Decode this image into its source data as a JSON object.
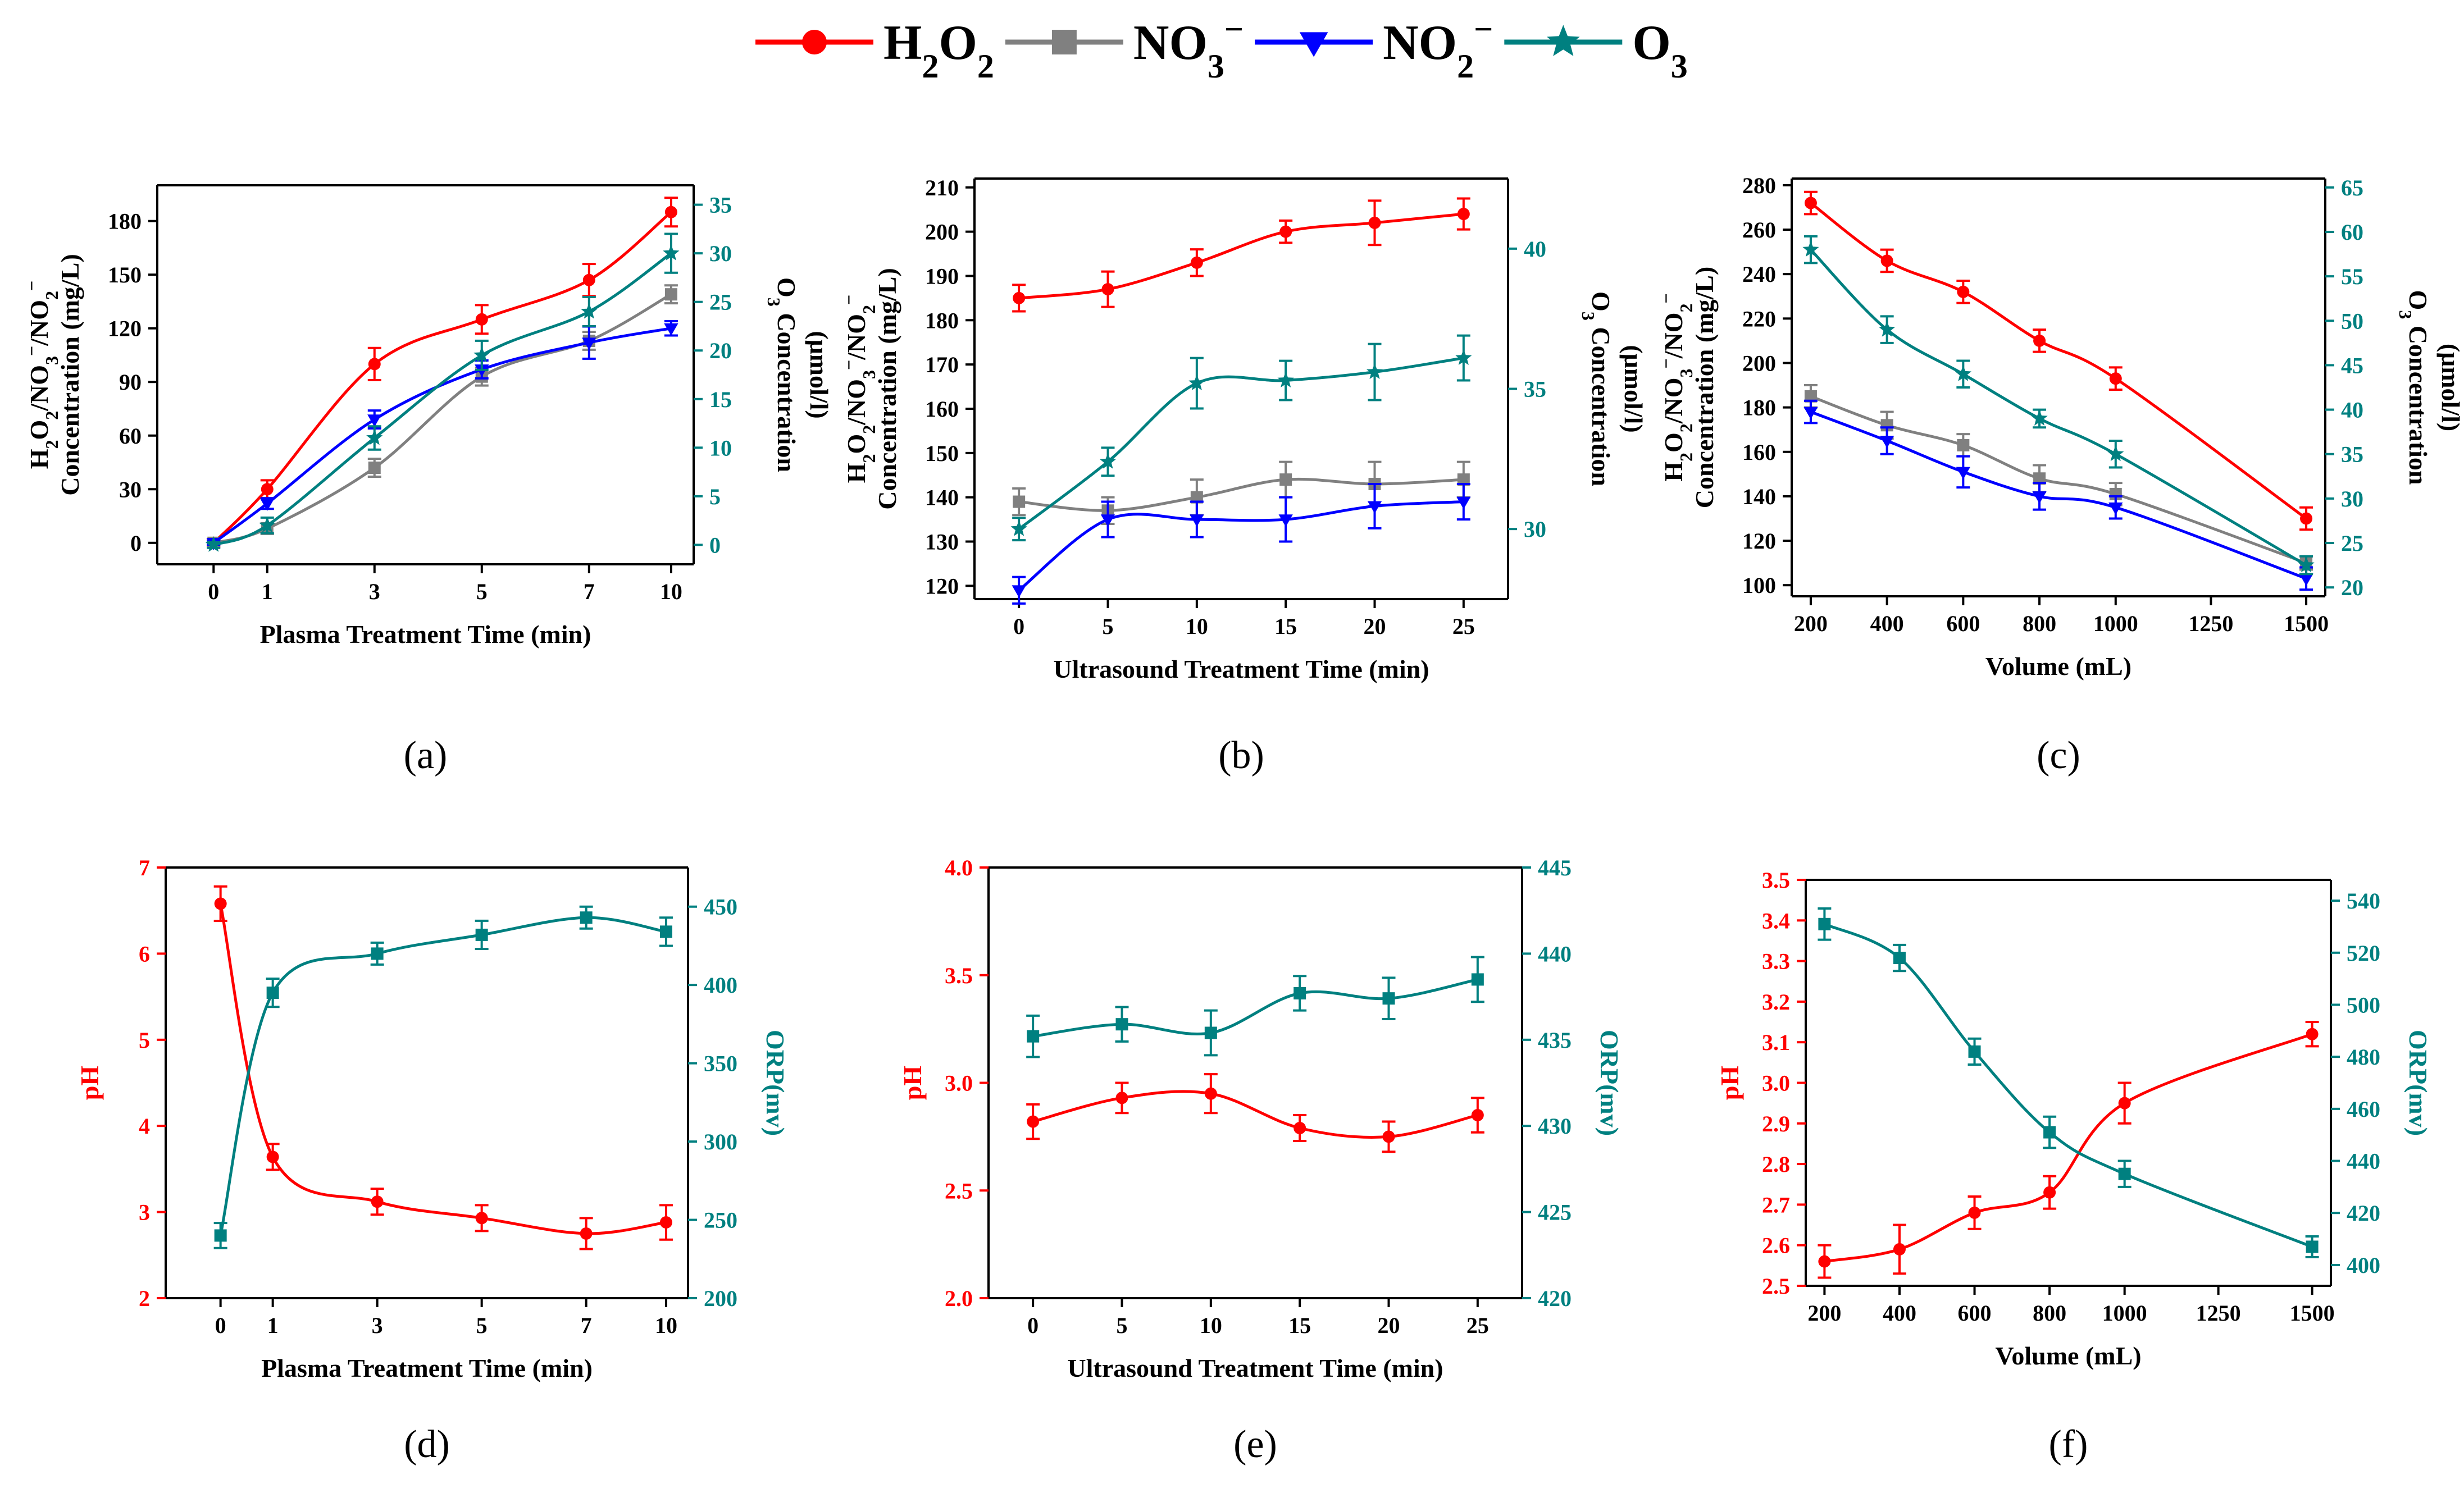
{
  "colors": {
    "H2O2": "#ff0000",
    "NO3": "#808080",
    "NO2": "#0000ff",
    "O3": "#008080",
    "pH": "#ff0000",
    "ORP": "#008080"
  },
  "legend": [
    {
      "key": "H2O2",
      "main": "H",
      "sub1": "2",
      "mid": "O",
      "sub2": "2",
      "sup": "",
      "marker": "circle"
    },
    {
      "key": "NO3",
      "main": "NO",
      "sub1": "3",
      "mid": "",
      "sub2": "",
      "sup": "−",
      "marker": "square"
    },
    {
      "key": "NO2",
      "main": "NO",
      "sub1": "2",
      "mid": "",
      "sub2": "",
      "sup": "−",
      "marker": "triangle-down"
    },
    {
      "key": "O3",
      "main": "O",
      "sub1": "3",
      "mid": "",
      "sub2": "",
      "sup": "",
      "marker": "star"
    }
  ],
  "chart_data": [
    {
      "panel": "(a)",
      "type": "line",
      "x_mode": "categorical",
      "x": [
        0,
        1,
        3,
        5,
        7,
        10
      ],
      "xlabel": "Plasma Treatment Time (min)",
      "ylabel_left_line1": "H2O2/NO3−/NO2−",
      "ylabel_left_line2": "Concentration (mg/L)",
      "ylabel_right_line1": "O3 Concentration",
      "ylabel_right_line2": "(μmol/l)",
      "ylim_left": [
        -12,
        200
      ],
      "yticks_left": [
        0,
        30,
        60,
        90,
        120,
        150,
        180
      ],
      "ylim_right": [
        -2,
        37
      ],
      "yticks_right": [
        0,
        5,
        10,
        15,
        20,
        25,
        30,
        35
      ],
      "series": [
        {
          "name": "H2O2",
          "axis": "left",
          "values": [
            0,
            30,
            100,
            125,
            147,
            185
          ],
          "errors": [
            2,
            5,
            9,
            8,
            9,
            8
          ]
        },
        {
          "name": "NO3−",
          "axis": "left",
          "values": [
            0,
            8,
            42,
            93,
            113,
            139
          ],
          "errors": [
            1,
            3,
            5,
            5,
            5,
            5
          ]
        },
        {
          "name": "NO2−",
          "axis": "left",
          "values": [
            0,
            22,
            69,
            97,
            112,
            120
          ],
          "errors": [
            1,
            3,
            5,
            5,
            9,
            4
          ]
        },
        {
          "name": "O3",
          "axis": "right",
          "values": [
            0,
            2,
            11,
            19.5,
            24,
            30
          ],
          "errors": [
            0.3,
            0.8,
            1.2,
            1.5,
            1.5,
            2
          ]
        }
      ]
    },
    {
      "panel": "(b)",
      "type": "line",
      "x_mode": "numeric",
      "x": [
        0,
        5,
        10,
        15,
        20,
        25
      ],
      "xlim": [
        -2.5,
        27.5
      ],
      "xticks": [
        0,
        5,
        10,
        15,
        20,
        25
      ],
      "xlabel": "Ultrasound Treatment Time (min)",
      "ylabel_left_line1": "H2O2/NO3−/NO2−",
      "ylabel_left_line2": "Concentration (mg/L)",
      "ylabel_right_line1": "O3 Concentration",
      "ylabel_right_line2": "(μmol/l)",
      "ylim_left": [
        117,
        212
      ],
      "yticks_left": [
        120,
        130,
        140,
        150,
        160,
        170,
        180,
        190,
        200,
        210
      ],
      "ylim_right": [
        27.5,
        42.5
      ],
      "yticks_right": [
        30,
        35,
        40
      ],
      "series": [
        {
          "name": "H2O2",
          "axis": "left",
          "values": [
            185,
            187,
            193,
            200,
            202,
            204
          ],
          "errors": [
            3,
            4,
            3,
            2.5,
            5,
            3.5
          ]
        },
        {
          "name": "NO3−",
          "axis": "left",
          "values": [
            139,
            137,
            140,
            144,
            143,
            144
          ],
          "errors": [
            3,
            3,
            4,
            4,
            5,
            4
          ]
        },
        {
          "name": "NO2−",
          "axis": "left",
          "values": [
            119,
            135,
            135,
            135,
            138,
            139
          ],
          "errors": [
            3,
            4,
            4,
            5,
            5,
            4
          ]
        },
        {
          "name": "O3",
          "axis": "right",
          "values": [
            30,
            32.4,
            35.2,
            35.3,
            35.6,
            36.1
          ],
          "errors": [
            0.4,
            0.5,
            0.9,
            0.7,
            1,
            0.8
          ]
        }
      ]
    },
    {
      "panel": "(c)",
      "type": "line",
      "x_mode": "numeric",
      "x": [
        200,
        400,
        600,
        800,
        1000,
        1500
      ],
      "xlim": [
        150,
        1550
      ],
      "xticks": [
        200,
        400,
        600,
        800,
        1000,
        1250,
        1500
      ],
      "xlabel": "Volume (mL)",
      "ylabel_left_line1": "H2O2/NO3−/NO2−",
      "ylabel_left_line2": "Concentration (mg/L)",
      "ylabel_right_line1": "O3 Concentration",
      "ylabel_right_line2": "(μmol/l)",
      "ylim_left": [
        95,
        283
      ],
      "yticks_left": [
        100,
        120,
        140,
        160,
        180,
        200,
        220,
        240,
        260,
        280
      ],
      "ylim_right": [
        19,
        66
      ],
      "yticks_right": [
        20,
        25,
        30,
        35,
        40,
        45,
        50,
        55,
        60,
        65
      ],
      "series": [
        {
          "name": "H2O2",
          "axis": "left",
          "values": [
            272,
            246,
            232,
            210,
            193,
            130
          ],
          "errors": [
            5,
            5,
            5,
            5,
            5,
            5
          ]
        },
        {
          "name": "NO3−",
          "axis": "left",
          "values": [
            185,
            172,
            163,
            148,
            141,
            110
          ],
          "errors": [
            5,
            6,
            5,
            6,
            5,
            3
          ]
        },
        {
          "name": "NO2−",
          "axis": "left",
          "values": [
            178,
            165,
            151,
            140,
            135,
            103
          ],
          "errors": [
            5,
            6,
            7,
            6,
            5,
            5
          ]
        },
        {
          "name": "O3",
          "axis": "right",
          "values": [
            58,
            49,
            44,
            39,
            35,
            22.5
          ],
          "errors": [
            1.5,
            1.5,
            1.5,
            1,
            1.5,
            1
          ]
        }
      ]
    },
    {
      "panel": "(d)",
      "type": "line",
      "x_mode": "categorical",
      "x": [
        0,
        1,
        3,
        5,
        7,
        10
      ],
      "xlabel": "Plasma Treatment Time (min)",
      "ylabel_left_line1": "pH",
      "ylabel_right_line1": "ORP(mv)",
      "ylim_left": [
        2,
        7
      ],
      "yticks_left": [
        2,
        3,
        4,
        5,
        6,
        7
      ],
      "ylim_right": [
        200,
        475
      ],
      "yticks_right": [
        200,
        250,
        300,
        350,
        400,
        450
      ],
      "series": [
        {
          "name": "pH",
          "axis": "left",
          "values": [
            6.58,
            3.64,
            3.12,
            2.93,
            2.75,
            2.88
          ],
          "errors": [
            0.2,
            0.15,
            0.15,
            0.15,
            0.18,
            0.2
          ]
        },
        {
          "name": "ORP",
          "axis": "right",
          "values": [
            240,
            395,
            420,
            432,
            443,
            434
          ],
          "errors": [
            8,
            9,
            7,
            9,
            7,
            9
          ]
        }
      ]
    },
    {
      "panel": "(e)",
      "type": "line",
      "x_mode": "numeric",
      "x": [
        0,
        5,
        10,
        15,
        20,
        25
      ],
      "xlim": [
        -2.5,
        27.5
      ],
      "xticks": [
        0,
        5,
        10,
        15,
        20,
        25
      ],
      "xlabel": "Ultrasound Treatment Time (min)",
      "ylabel_left_line1": "pH",
      "ylabel_right_line1": "ORP(mv)",
      "ylim_left": [
        2.0,
        4.0
      ],
      "yticks_left": [
        2.0,
        2.5,
        3.0,
        3.5,
        4.0
      ],
      "ylim_right": [
        420,
        445
      ],
      "yticks_right": [
        420,
        425,
        430,
        435,
        440,
        445
      ],
      "series": [
        {
          "name": "pH",
          "axis": "left",
          "values": [
            2.82,
            2.93,
            2.95,
            2.79,
            2.75,
            2.85
          ],
          "errors": [
            0.08,
            0.07,
            0.09,
            0.06,
            0.07,
            0.08
          ]
        },
        {
          "name": "ORP",
          "axis": "right",
          "values": [
            435.2,
            435.9,
            435.4,
            437.7,
            437.4,
            438.5
          ],
          "errors": [
            1.2,
            1,
            1.3,
            1,
            1.2,
            1.3
          ]
        }
      ]
    },
    {
      "panel": "(f)",
      "type": "line",
      "x_mode": "numeric",
      "x": [
        200,
        400,
        600,
        800,
        1000,
        1500
      ],
      "xlim": [
        150,
        1550
      ],
      "xticks": [
        200,
        400,
        600,
        800,
        1000,
        1250,
        1500
      ],
      "xlabel": "Volume (mL)",
      "ylabel_left_line1": "pH",
      "ylabel_right_line1": "ORP(mv)",
      "ylim_left": [
        2.5,
        3.5
      ],
      "yticks_left": [
        2.5,
        2.6,
        2.7,
        2.8,
        2.9,
        3.0,
        3.1,
        3.2,
        3.3,
        3.4,
        3.5
      ],
      "ylim_right": [
        392,
        548
      ],
      "yticks_right": [
        400,
        420,
        440,
        460,
        480,
        500,
        520,
        540
      ],
      "series": [
        {
          "name": "pH",
          "axis": "left",
          "values": [
            2.56,
            2.59,
            2.68,
            2.73,
            2.95,
            3.12
          ],
          "errors": [
            0.04,
            0.06,
            0.04,
            0.04,
            0.05,
            0.03
          ]
        },
        {
          "name": "ORP",
          "axis": "right",
          "values": [
            531,
            518,
            482,
            451,
            435,
            407
          ],
          "errors": [
            6,
            5,
            5,
            6,
            5,
            4
          ]
        }
      ]
    }
  ]
}
